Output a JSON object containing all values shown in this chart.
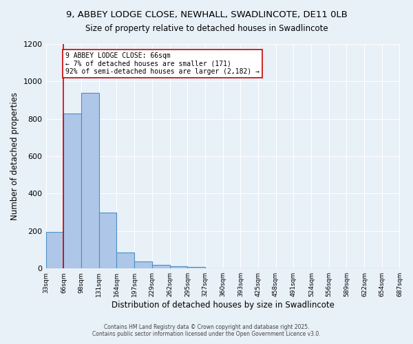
{
  "title_line1": "9, ABBEY LODGE CLOSE, NEWHALL, SWADLINCOTE, DE11 0LB",
  "title_line2": "Size of property relative to detached houses in Swadlincote",
  "xlabel": "Distribution of detached houses by size in Swadlincote",
  "ylabel": "Number of detached properties",
  "bin_labels": [
    "33sqm",
    "66sqm",
    "98sqm",
    "131sqm",
    "164sqm",
    "197sqm",
    "229sqm",
    "262sqm",
    "295sqm",
    "327sqm",
    "360sqm",
    "393sqm",
    "425sqm",
    "458sqm",
    "491sqm",
    "524sqm",
    "556sqm",
    "589sqm",
    "622sqm",
    "654sqm",
    "687sqm"
  ],
  "bin_edges": [
    33,
    66,
    98,
    131,
    164,
    197,
    229,
    262,
    295,
    327,
    360,
    393,
    425,
    458,
    491,
    524,
    556,
    589,
    622,
    654,
    687
  ],
  "bar_heights": [
    196,
    828,
    940,
    300,
    85,
    38,
    18,
    12,
    8,
    0,
    0,
    0,
    0,
    0,
    0,
    0,
    0,
    0,
    0,
    0
  ],
  "bar_color": "#aec6e8",
  "bar_edgecolor": "#4a90c4",
  "bg_color": "#e8f0f8",
  "grid_color": "#ffffff",
  "property_line_x": 66,
  "annotation_title": "9 ABBEY LODGE CLOSE: 66sqm",
  "annotation_line1": "← 7% of detached houses are smaller (171)",
  "annotation_line2": "92% of semi-detached houses are larger (2,182) →",
  "annotation_box_color": "#ffffff",
  "annotation_box_edgecolor": "#cc0000",
  "property_line_color": "#cc0000",
  "ylim": [
    0,
    1200
  ],
  "yticks": [
    0,
    200,
    400,
    600,
    800,
    1000,
    1200
  ],
  "footer_line1": "Contains HM Land Registry data © Crown copyright and database right 2025.",
  "footer_line2": "Contains public sector information licensed under the Open Government Licence v3.0."
}
